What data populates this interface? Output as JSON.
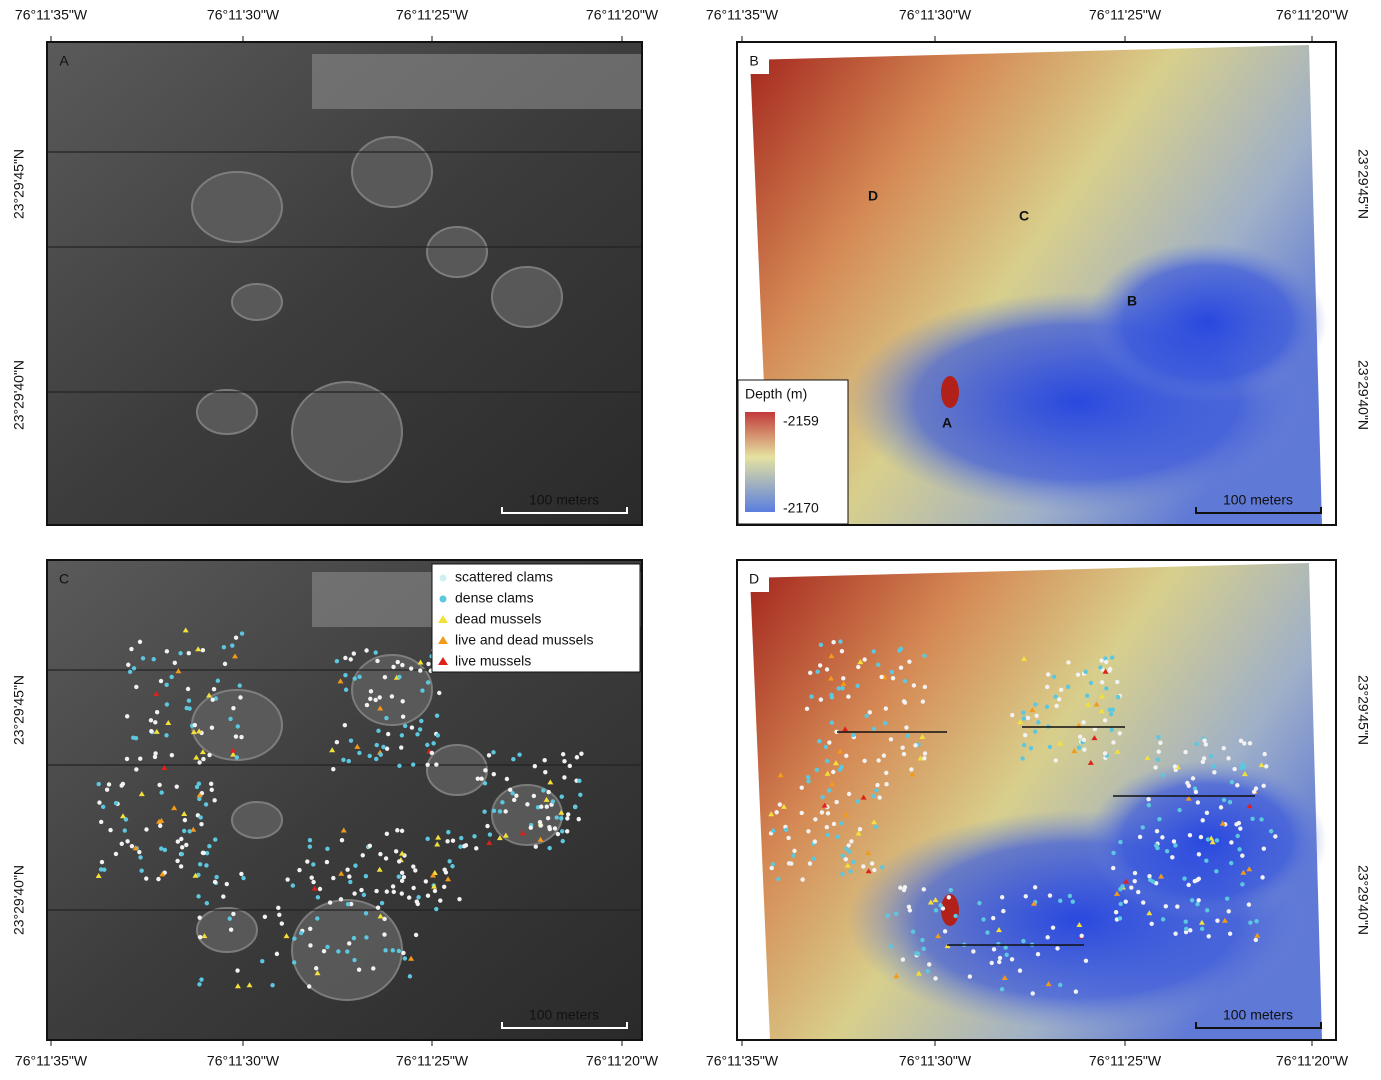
{
  "panels": [
    {
      "letter": "A",
      "lon_labels": [
        "76°11'35\"W",
        "76°11'30\"W",
        "76°11'25\"W",
        "76°11'20\"W"
      ],
      "lat_labels": [
        "23°29'45\"N",
        "23°29'40\"N"
      ],
      "scale_bar": "100 meters"
    },
    {
      "letter": "B",
      "lon_labels": [
        "76°11'35\"W",
        "76°11'30\"W",
        "76°11'25\"W",
        "76°11'20\"W"
      ],
      "lat_labels": [
        "23°29'45\"N",
        "23°29'40\"N"
      ],
      "scale_bar": "100 meters",
      "site_labels": [
        "D",
        "C",
        "B",
        "A"
      ],
      "depth_legend": {
        "title": "Depth (m)",
        "max": -2159,
        "min": -2170
      }
    },
    {
      "letter": "C",
      "lon_labels": [
        "76°11'35\"W",
        "76°11'30\"W",
        "76°11'25\"W",
        "76°11'20\"W"
      ],
      "lat_labels": [
        "23°29'45\"N",
        "23°29'40\"N"
      ],
      "scale_bar": "100 meters",
      "legend": [
        "scattered clams",
        "dense clams",
        "dead mussels",
        "live and dead mussels",
        "live mussels"
      ]
    },
    {
      "letter": "D",
      "lon_labels": [
        "76°11'35\"W",
        "76°11'30\"W",
        "76°11'25\"W",
        "76°11'20\"W"
      ],
      "lat_labels": [
        "23°29'45\"N",
        "23°29'40\"N"
      ],
      "scale_bar": "100 meters"
    }
  ]
}
